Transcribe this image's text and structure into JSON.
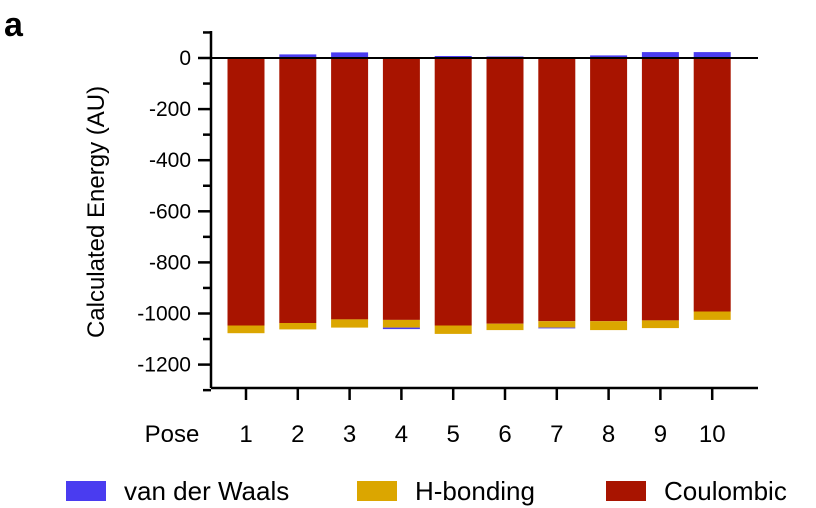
{
  "panel_label": "a",
  "colors": {
    "van_der_waals": "#4a3cf0",
    "h_bonding": "#dba600",
    "coulombic": "#a81400",
    "axis": "#000000"
  },
  "chart_data": {
    "type": "bar",
    "stacked": true,
    "title": "",
    "xlabel": "Pose",
    "ylabel": "Calculated Energy (AU)",
    "categories": [
      "1",
      "2",
      "3",
      "4",
      "5",
      "6",
      "7",
      "8",
      "9",
      "10"
    ],
    "ylim": [
      -1300,
      100
    ],
    "yticks": [
      0,
      -200,
      -400,
      -600,
      -800,
      -1000,
      -1200
    ],
    "ytick_labels": [
      "0",
      "-200",
      "-400",
      "-600",
      "-800",
      "-1000",
      "-1200"
    ],
    "grid": false,
    "legend_position": "bottom",
    "series": [
      {
        "name": "van der Waals",
        "color": "#4a3cf0",
        "values": [
          1,
          14,
          22,
          -6,
          8,
          6,
          -3,
          10,
          23,
          23
        ]
      },
      {
        "name": "H-bonding",
        "color": "#dba600",
        "values": [
          -30,
          -25,
          -32,
          -30,
          -33,
          -25,
          -25,
          -35,
          -30,
          -33
        ]
      },
      {
        "name": "Coulombic",
        "color": "#a81400",
        "values": [
          -1047,
          -1037,
          -1023,
          -1025,
          -1047,
          -1040,
          -1030,
          -1030,
          -1027,
          -992
        ]
      }
    ]
  }
}
